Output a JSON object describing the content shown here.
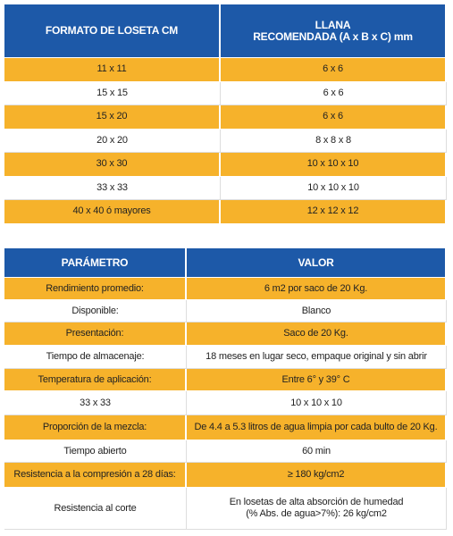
{
  "tables": [
    {
      "header": [
        "FORMATO DE LOSETA CM",
        [
          "LLANA",
          "RECOMENDADA (A x B x C) mm"
        ]
      ],
      "rows": [
        [
          "11 x 11",
          "6 x 6"
        ],
        [
          "15 x 15",
          "6 x 6"
        ],
        [
          "15 x 20",
          "6 x 6"
        ],
        [
          "20 x 20",
          "8 x 8 x 8"
        ],
        [
          "30 x 30",
          "10 x 10 x 10"
        ],
        [
          "33 x 33",
          "10 x 10 x 10"
        ],
        [
          "40 x 40 ó mayores",
          "12 x 12 x 12"
        ]
      ]
    },
    {
      "header": [
        "PARÁMETRO",
        "VALOR"
      ],
      "rows": [
        [
          "Rendimiento promedio:",
          "6 m2 por saco de 20 Kg."
        ],
        [
          "Disponible:",
          "Blanco"
        ],
        [
          "Presentación:",
          "Saco de 20 Kg."
        ],
        [
          "Tiempo de almacenaje:",
          "18 meses en lugar seco, empaque original y sin abrir"
        ],
        [
          "Temperatura de aplicación:",
          "Entre 6° y 39° C"
        ],
        [
          "33 x 33",
          "10 x 10 x 10"
        ],
        [
          "Proporción de la mezcla:",
          "De 4.4 a 5.3 litros de agua limpia por cada bulto de 20 Kg."
        ],
        [
          "Tiempo abierto",
          "60 min"
        ],
        [
          "Resistencia a la compresión a 28 días:",
          "≥ 180 kg/cm2"
        ],
        [
          "Resistencia al corte",
          [
            "En losetas de alta absorción de humedad",
            "(% Abs. de agua>7%): 26 kg/cm2"
          ]
        ]
      ]
    }
  ]
}
